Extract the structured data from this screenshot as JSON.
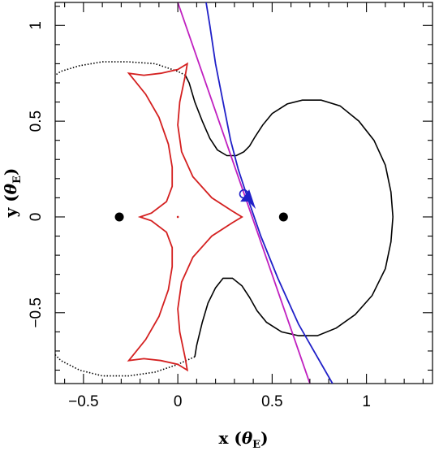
{
  "chart_data": {
    "type": "line",
    "xlabel": "x (θE)",
    "ylabel": "y (θE)",
    "xlabel_parts": {
      "main": "x (",
      "theta": "θ",
      "sub": "E",
      "close": ")"
    },
    "ylabel_parts": {
      "main": "y (",
      "theta": "θ",
      "sub": "E",
      "close": ")"
    },
    "xlim": [
      -0.65,
      1.35
    ],
    "ylim": [
      -0.87,
      1.12
    ],
    "x_ticks": [
      -0.5,
      0,
      0.5,
      1
    ],
    "x_tick_labels": [
      "−0.5",
      "0",
      "0.5",
      "1"
    ],
    "y_ticks": [
      -0.5,
      0,
      0.5,
      1
    ],
    "y_tick_labels": [
      "−0.5",
      "0",
      "0.5",
      "1"
    ],
    "grid": false,
    "lenses": [
      {
        "x": -0.31,
        "y": 0.0
      },
      {
        "x": 0.56,
        "y": 0.0
      }
    ],
    "critical_curve": {
      "color": "#000000",
      "outer_left": [
        [
          0.09,
          -0.73
        ],
        [
          0.0,
          -0.77
        ],
        [
          -0.12,
          -0.81
        ],
        [
          -0.26,
          -0.83
        ],
        [
          -0.4,
          -0.83
        ],
        [
          -0.52,
          -0.8
        ],
        [
          -0.62,
          -0.75
        ],
        [
          -0.65,
          -0.72
        ]
      ],
      "outer_left_top": [
        [
          0.04,
          0.74
        ],
        [
          0.0,
          0.76
        ],
        [
          -0.12,
          0.8
        ],
        [
          -0.26,
          0.81
        ],
        [
          -0.4,
          0.81
        ],
        [
          -0.52,
          0.79
        ],
        [
          -0.62,
          0.76
        ],
        [
          -0.65,
          0.74
        ]
      ],
      "upper_lobe": [
        [
          0.04,
          0.74
        ],
        [
          0.06,
          0.7
        ],
        [
          0.09,
          0.6
        ],
        [
          0.13,
          0.5
        ],
        [
          0.17,
          0.41
        ],
        [
          0.21,
          0.35
        ],
        [
          0.26,
          0.32
        ],
        [
          0.31,
          0.32
        ],
        [
          0.35,
          0.34
        ],
        [
          0.38,
          0.37
        ],
        [
          0.41,
          0.42
        ],
        [
          0.45,
          0.48
        ],
        [
          0.5,
          0.54
        ],
        [
          0.58,
          0.59
        ],
        [
          0.66,
          0.61
        ],
        [
          0.76,
          0.61
        ],
        [
          0.86,
          0.58
        ],
        [
          0.96,
          0.5
        ],
        [
          1.04,
          0.4
        ],
        [
          1.1,
          0.27
        ],
        [
          1.13,
          0.13
        ],
        [
          1.14,
          0.0
        ]
      ],
      "lower_lobe": [
        [
          0.09,
          -0.73
        ],
        [
          0.1,
          -0.67
        ],
        [
          0.13,
          -0.55
        ],
        [
          0.16,
          -0.45
        ],
        [
          0.2,
          -0.37
        ],
        [
          0.24,
          -0.32
        ],
        [
          0.29,
          -0.32
        ],
        [
          0.34,
          -0.36
        ],
        [
          0.38,
          -0.42
        ],
        [
          0.42,
          -0.49
        ],
        [
          0.47,
          -0.55
        ],
        [
          0.55,
          -0.6
        ],
        [
          0.64,
          -0.62
        ],
        [
          0.74,
          -0.62
        ],
        [
          0.84,
          -0.58
        ],
        [
          0.94,
          -0.51
        ],
        [
          1.03,
          -0.41
        ],
        [
          1.1,
          -0.27
        ],
        [
          1.13,
          -0.13
        ],
        [
          1.14,
          0.0
        ]
      ]
    },
    "caustic": {
      "color": "#d42020",
      "points": [
        [
          0.0,
          0.0
        ],
        [
          -0.2,
          0.0
        ],
        [
          -0.14,
          0.02
        ],
        [
          -0.06,
          0.08
        ],
        [
          -0.03,
          0.16
        ],
        [
          -0.03,
          0.26
        ],
        [
          -0.05,
          0.38
        ],
        [
          -0.1,
          0.52
        ],
        [
          -0.17,
          0.64
        ],
        [
          -0.26,
          0.75
        ],
        [
          -0.18,
          0.74
        ],
        [
          -0.09,
          0.75
        ],
        [
          0.0,
          0.77
        ],
        [
          0.05,
          0.8
        ],
        [
          0.04,
          0.74
        ],
        [
          0.01,
          0.6
        ],
        [
          0.0,
          0.48
        ],
        [
          0.02,
          0.34
        ],
        [
          0.08,
          0.21
        ],
        [
          0.18,
          0.1
        ],
        [
          0.29,
          0.03
        ],
        [
          0.34,
          0.0
        ],
        [
          0.29,
          -0.03
        ],
        [
          0.18,
          -0.1
        ],
        [
          0.08,
          -0.21
        ],
        [
          0.02,
          -0.34
        ],
        [
          0.0,
          -0.48
        ],
        [
          0.01,
          -0.6
        ],
        [
          0.04,
          -0.74
        ],
        [
          0.05,
          -0.8
        ],
        [
          0.0,
          -0.77
        ],
        [
          -0.09,
          -0.75
        ],
        [
          -0.18,
          -0.74
        ],
        [
          -0.26,
          -0.75
        ],
        [
          -0.17,
          -0.64
        ],
        [
          -0.1,
          -0.52
        ],
        [
          -0.05,
          -0.38
        ],
        [
          -0.03,
          -0.26
        ],
        [
          -0.03,
          -0.16
        ],
        [
          -0.06,
          -0.08
        ],
        [
          -0.14,
          -0.02
        ],
        [
          -0.2,
          0.0
        ]
      ]
    },
    "series": [
      {
        "color": "#c020c0",
        "points": [
          [
            0.0,
            1.12
          ],
          [
            0.7,
            -0.87
          ]
        ]
      },
      {
        "color": "#2020c8",
        "points": [
          [
            0.15,
            1.12
          ],
          [
            0.17,
            1.0
          ],
          [
            0.2,
            0.8
          ],
          [
            0.24,
            0.6
          ],
          [
            0.28,
            0.4
          ],
          [
            0.32,
            0.25
          ],
          [
            0.37,
            0.1
          ],
          [
            0.44,
            -0.1
          ],
          [
            0.53,
            -0.32
          ],
          [
            0.64,
            -0.56
          ],
          [
            0.82,
            -0.87
          ]
        ]
      }
    ],
    "source_marker": {
      "x": 0.35,
      "y": 0.12,
      "color": "#2020c8"
    },
    "arrow": {
      "x": 0.37,
      "y": 0.05,
      "color": "#2020c8"
    }
  }
}
